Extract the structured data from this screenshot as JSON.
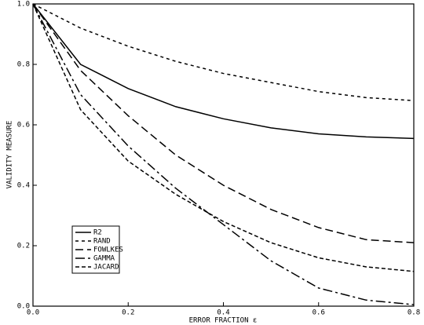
{
  "chart_data": {
    "type": "line",
    "xlabel": "ERROR FRACTION ε",
    "ylabel": "VALIDITY MEASURE",
    "x": [
      0,
      0.1,
      0.2,
      0.3,
      0.4,
      0.5,
      0.6,
      0.7,
      0.8
    ],
    "series": [
      {
        "name": "R2",
        "color": "#000000",
        "dash": "none",
        "values": [
          1.0,
          0.8,
          0.72,
          0.66,
          0.62,
          0.59,
          0.57,
          0.56,
          0.555
        ]
      },
      {
        "name": "RAND",
        "color": "#000000",
        "dash": "4 4",
        "values": [
          1.0,
          0.92,
          0.86,
          0.81,
          0.77,
          0.74,
          0.71,
          0.69,
          0.68
        ]
      },
      {
        "name": "FOWLKES",
        "color": "#000000",
        "dash": "10 5",
        "values": [
          1.0,
          0.78,
          0.63,
          0.5,
          0.4,
          0.32,
          0.26,
          0.22,
          0.21
        ]
      },
      {
        "name": "GAMMA",
        "color": "#000000",
        "dash": "12 4 3 4",
        "values": [
          1.0,
          0.7,
          0.53,
          0.39,
          0.27,
          0.15,
          0.06,
          0.02,
          0.005
        ]
      },
      {
        "name": "JACARD",
        "color": "#000000",
        "dash": "5 3",
        "values": [
          1.0,
          0.65,
          0.48,
          0.37,
          0.28,
          0.21,
          0.16,
          0.13,
          0.115
        ]
      }
    ],
    "xlim": [
      0,
      0.8
    ],
    "xticks": [
      {
        "value": 0,
        "label": "0.0"
      },
      0.2,
      0.4,
      0.6,
      0.8
    ],
    "ylim": [
      0,
      1
    ],
    "yticks": [
      {
        "value": 0,
        "label": "0.0"
      },
      0.2,
      0.4,
      0.6,
      0.8,
      {
        "value": 1,
        "label": "1.0"
      }
    ],
    "grid": false,
    "legend": "lower left"
  }
}
